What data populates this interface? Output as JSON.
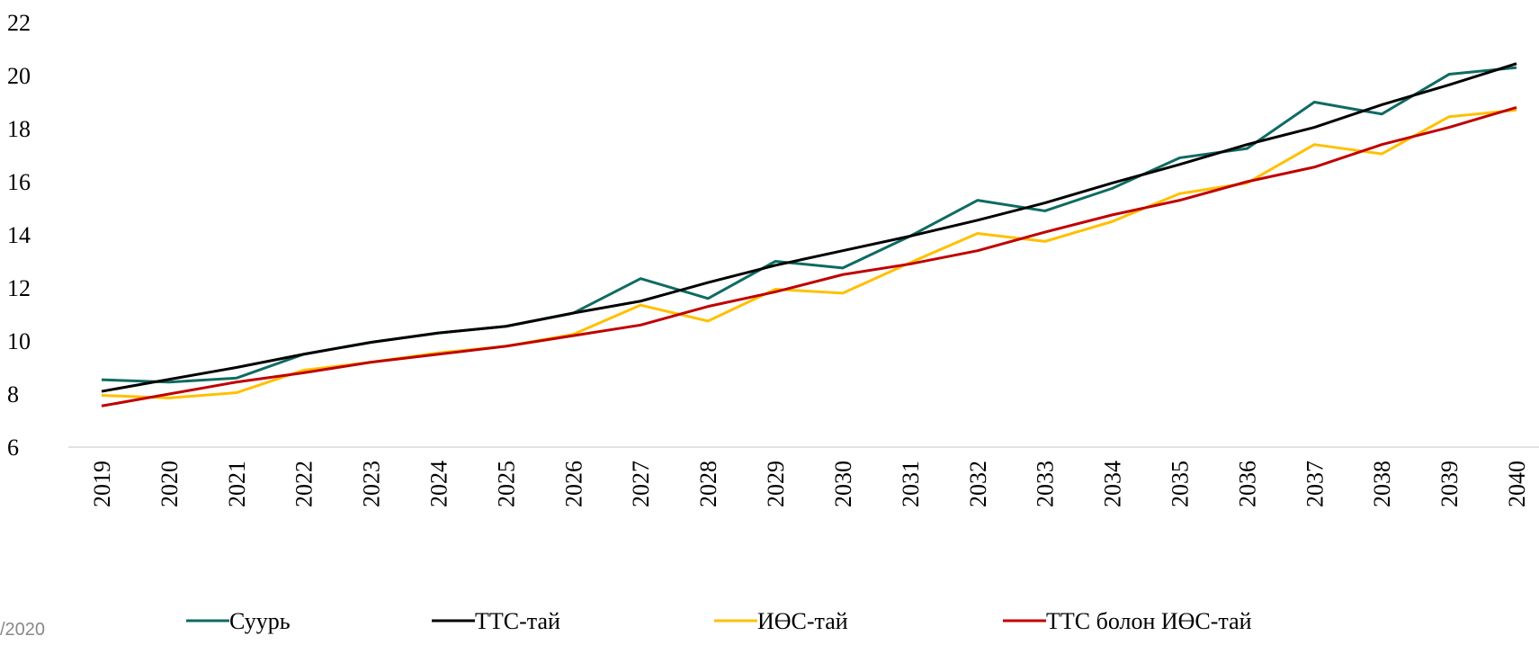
{
  "chart_data": {
    "type": "line",
    "categories": [
      "2019",
      "2020",
      "2021",
      "2022",
      "2023",
      "2024",
      "2025",
      "2026",
      "2027",
      "2028",
      "2029",
      "2030",
      "2031",
      "2032",
      "2033",
      "2034",
      "2035",
      "2036",
      "2037",
      "2038",
      "2039",
      "2040"
    ],
    "series": [
      {
        "name": "Суурь",
        "color": "#0e6b63",
        "values": [
          8.54,
          8.45,
          8.6,
          9.5,
          9.95,
          10.3,
          10.55,
          11.05,
          12.35,
          11.6,
          13.0,
          12.75,
          13.95,
          15.3,
          14.9,
          15.75,
          16.9,
          17.25,
          19.0,
          18.55,
          20.05,
          20.3
        ]
      },
      {
        "name": "ТТС-тай",
        "color": "#000000",
        "values": [
          8.1,
          8.55,
          9.0,
          9.5,
          9.95,
          10.3,
          10.55,
          11.05,
          11.5,
          12.2,
          12.85,
          13.4,
          13.95,
          14.55,
          15.2,
          15.95,
          16.65,
          17.4,
          18.05,
          18.9,
          19.65,
          20.45
        ]
      },
      {
        "name": "ИӨС-тай",
        "color": "#ffc000",
        "values": [
          7.95,
          7.85,
          8.05,
          8.9,
          9.2,
          9.55,
          9.8,
          10.25,
          11.35,
          10.75,
          11.95,
          11.8,
          12.95,
          14.05,
          13.75,
          14.5,
          15.55,
          15.95,
          17.4,
          17.05,
          18.45,
          18.7
        ]
      },
      {
        "name": "ТТС болон ИӨС-тай",
        "color": "#c00000",
        "values": [
          7.55,
          8.0,
          8.45,
          8.8,
          9.2,
          9.5,
          9.8,
          10.2,
          10.6,
          11.3,
          11.85,
          12.5,
          12.9,
          13.4,
          14.1,
          14.75,
          15.3,
          16.0,
          16.55,
          17.4,
          18.05,
          18.8
        ]
      }
    ],
    "ylim": [
      6,
      22
    ],
    "yticks": [
      6,
      8,
      10,
      12,
      14,
      16,
      18,
      20,
      22
    ],
    "footer_fragment": "/2020"
  }
}
